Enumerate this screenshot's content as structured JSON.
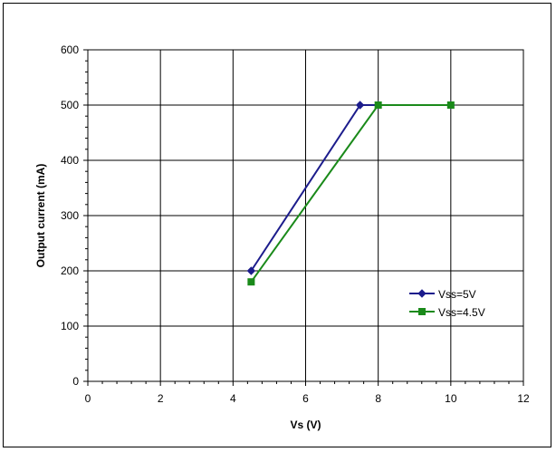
{
  "chart_data": {
    "type": "line",
    "title": "",
    "xlabel": "Vs (V)",
    "ylabel": "Output current (mA)",
    "xlim": [
      0,
      12
    ],
    "ylim": [
      0,
      600
    ],
    "xticks": [
      0,
      2,
      4,
      6,
      8,
      10,
      12
    ],
    "yticks": [
      0,
      100,
      200,
      300,
      400,
      500,
      600
    ],
    "grid": true,
    "legend_position": "right",
    "series": [
      {
        "name": "Vss=5V",
        "color": "#1c1c8c",
        "marker": "diamond",
        "x": [
          4.5,
          7.5,
          8,
          10
        ],
        "y": [
          200,
          500,
          500,
          500
        ]
      },
      {
        "name": "Vss=4.5V",
        "color": "#1a8a1a",
        "marker": "square",
        "x": [
          4.5,
          8,
          10
        ],
        "y": [
          180,
          500,
          500
        ]
      }
    ]
  }
}
